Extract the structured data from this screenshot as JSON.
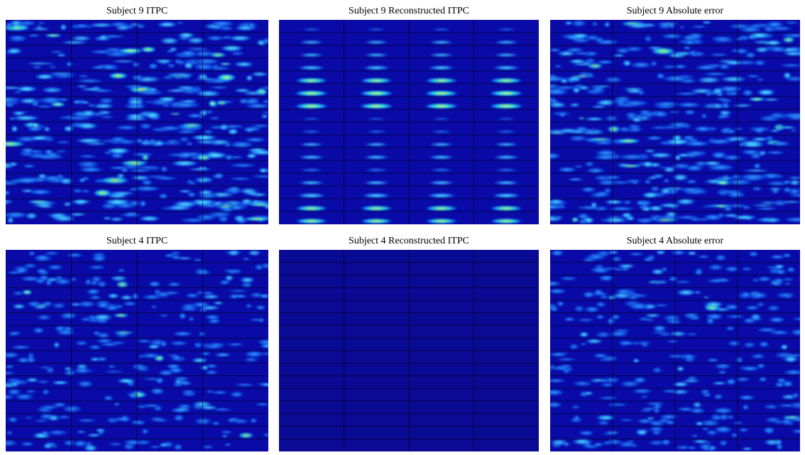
{
  "panels": [
    {
      "title": "Subject 9 ITPC"
    },
    {
      "title": "Subject 9 Reconstructed ITPC"
    },
    {
      "title": "Subject 9 Absolute error"
    },
    {
      "title": "Subject 4 ITPC"
    },
    {
      "title": "Subject 4 Reconstructed ITPC"
    },
    {
      "title": "Subject 4 Absolute error"
    }
  ]
}
